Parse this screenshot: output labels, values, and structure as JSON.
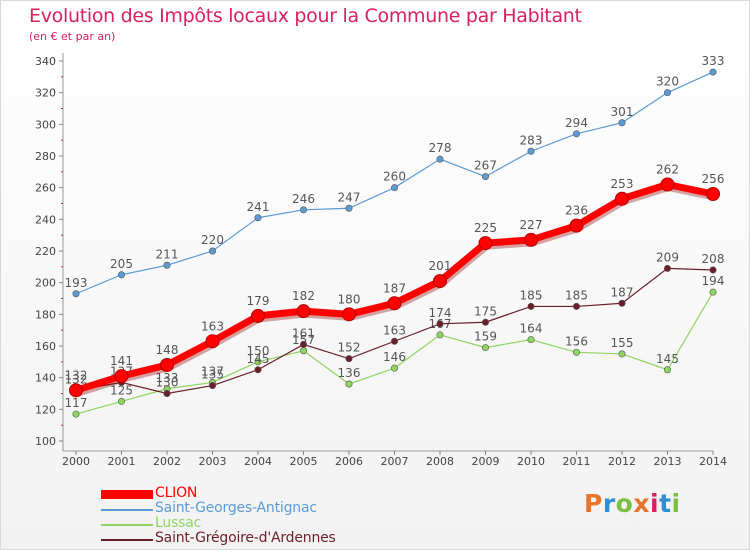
{
  "title": "Evolution des Impôts locaux pour la Commune par Habitant",
  "subtitle": "(en € et par an)",
  "logo": {
    "text": "Proxiti",
    "colors": [
      "#e8732a",
      "#2f8fd1",
      "#7bc043",
      "#e8732a",
      "#d7205f",
      "#2f8fd1",
      "#7bc043"
    ]
  },
  "chart_data": {
    "type": "line",
    "categories": [
      "2000",
      "2001",
      "2002",
      "2003",
      "2004",
      "2005",
      "2006",
      "2007",
      "2008",
      "2009",
      "2010",
      "2011",
      "2012",
      "2013",
      "2014"
    ],
    "ylim": [
      100,
      340
    ],
    "yticks": [
      100,
      120,
      140,
      160,
      180,
      200,
      220,
      240,
      260,
      280,
      300,
      320,
      340
    ],
    "grid": false,
    "legend_position": "bottom-left",
    "series": [
      {
        "name": "Saint-Georges-Antignac",
        "color": "#5b9bd5",
        "values": [
          193,
          205,
          211,
          220,
          241,
          246,
          247,
          260,
          278,
          267,
          283,
          294,
          301,
          320,
          333
        ]
      },
      {
        "name": "Lussac",
        "color": "#8ed562",
        "values": [
          117,
          125,
          133,
          137,
          150,
          157,
          136,
          146,
          167,
          159,
          164,
          156,
          155,
          145,
          194
        ]
      },
      {
        "name": "Saint-Grégoire-d'Ardennes",
        "color": "#6b1f2a",
        "values": [
          132,
          137,
          130,
          135,
          145,
          161,
          152,
          163,
          174,
          175,
          185,
          185,
          187,
          209,
          208
        ]
      },
      {
        "name": "CLION",
        "color": "#ff0000",
        "values": [
          132,
          141,
          148,
          163,
          179,
          182,
          180,
          187,
          201,
          225,
          227,
          236,
          253,
          262,
          256
        ]
      }
    ],
    "legend_order": [
      "CLION",
      "Saint-Georges-Antignac",
      "Lussac",
      "Saint-Grégoire-d'Ardennes"
    ]
  }
}
